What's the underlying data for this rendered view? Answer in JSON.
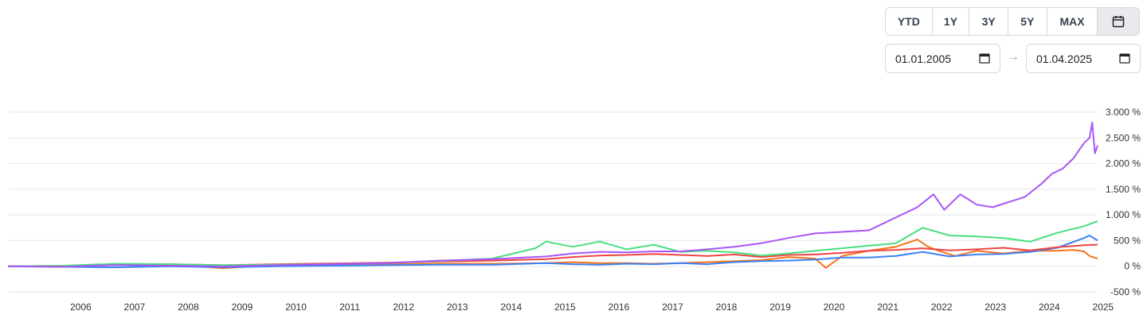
{
  "controls": {
    "range_buttons": [
      "YTD",
      "1Y",
      "3Y",
      "5Y",
      "MAX"
    ],
    "calendar_icon": "calendar-icon",
    "start_date": "01.01.2005",
    "end_date": "01.04.2025",
    "arrow": "→"
  },
  "chart_data": {
    "type": "line",
    "title": "",
    "xlabel": "",
    "ylabel": "",
    "x_range": [
      2005.0,
      2025.25
    ],
    "ylim": [
      -500,
      3000
    ],
    "y_ticks": [
      -500,
      0,
      500,
      1000,
      1500,
      2000,
      2500,
      3000
    ],
    "y_tick_labels": [
      "-500 %",
      "0 %",
      "500 %",
      "1.000 %",
      "1.500 %",
      "2.000 %",
      "2.500 %",
      "3.000 %"
    ],
    "x_ticks": [
      2006,
      2007,
      2008,
      2009,
      2010,
      2011,
      2012,
      2013,
      2014,
      2015,
      2016,
      2017,
      2018,
      2019,
      2020,
      2021,
      2022,
      2023,
      2024,
      2025
    ],
    "grid": true,
    "legend": "none",
    "series": [
      {
        "color": "#a855f7",
        "points": [
          [
            2005.0,
            0
          ],
          [
            2006.0,
            -10
          ],
          [
            2007.0,
            25
          ],
          [
            2008.0,
            10
          ],
          [
            2009.0,
            -5
          ],
          [
            2010.0,
            20
          ],
          [
            2011.0,
            40
          ],
          [
            2012.0,
            60
          ],
          [
            2013.0,
            110
          ],
          [
            2014.0,
            140
          ],
          [
            2015.0,
            190
          ],
          [
            2015.5,
            250
          ],
          [
            2016.0,
            280
          ],
          [
            2016.5,
            270
          ],
          [
            2017.0,
            290
          ],
          [
            2017.5,
            290
          ],
          [
            2018.0,
            330
          ],
          [
            2018.5,
            380
          ],
          [
            2019.0,
            450
          ],
          [
            2019.5,
            550
          ],
          [
            2020.0,
            640
          ],
          [
            2020.5,
            670
          ],
          [
            2021.0,
            700
          ],
          [
            2021.3,
            850
          ],
          [
            2021.6,
            1000
          ],
          [
            2021.9,
            1150
          ],
          [
            2022.2,
            1400
          ],
          [
            2022.4,
            1100
          ],
          [
            2022.7,
            1400
          ],
          [
            2023.0,
            1200
          ],
          [
            2023.3,
            1150
          ],
          [
            2023.6,
            1250
          ],
          [
            2023.9,
            1350
          ],
          [
            2024.2,
            1600
          ],
          [
            2024.4,
            1800
          ],
          [
            2024.6,
            1900
          ],
          [
            2024.8,
            2100
          ],
          [
            2025.0,
            2400
          ],
          [
            2025.1,
            2500
          ],
          [
            2025.15,
            2800
          ],
          [
            2025.2,
            2200
          ],
          [
            2025.25,
            2350
          ]
        ]
      },
      {
        "color": "#4ade80",
        "points": [
          [
            2005.0,
            0
          ],
          [
            2006.0,
            10
          ],
          [
            2007.0,
            50
          ],
          [
            2008.0,
            40
          ],
          [
            2009.0,
            20
          ],
          [
            2010.0,
            30
          ],
          [
            2011.0,
            40
          ],
          [
            2012.0,
            60
          ],
          [
            2013.0,
            100
          ],
          [
            2014.0,
            150
          ],
          [
            2014.8,
            350
          ],
          [
            2015.0,
            480
          ],
          [
            2015.5,
            380
          ],
          [
            2016.0,
            480
          ],
          [
            2016.5,
            330
          ],
          [
            2017.0,
            420
          ],
          [
            2017.5,
            280
          ],
          [
            2018.0,
            300
          ],
          [
            2018.5,
            270
          ],
          [
            2019.0,
            210
          ],
          [
            2019.5,
            250
          ],
          [
            2020.0,
            300
          ],
          [
            2020.5,
            350
          ],
          [
            2021.0,
            400
          ],
          [
            2021.5,
            450
          ],
          [
            2022.0,
            750
          ],
          [
            2022.5,
            600
          ],
          [
            2023.0,
            580
          ],
          [
            2023.5,
            550
          ],
          [
            2024.0,
            480
          ],
          [
            2024.5,
            650
          ],
          [
            2025.0,
            780
          ],
          [
            2025.25,
            880
          ]
        ]
      },
      {
        "color": "#ef4444",
        "points": [
          [
            2005.0,
            0
          ],
          [
            2006.0,
            10
          ],
          [
            2007.0,
            30
          ],
          [
            2008.0,
            40
          ],
          [
            2009.0,
            20
          ],
          [
            2010.0,
            40
          ],
          [
            2011.0,
            55
          ],
          [
            2012.0,
            70
          ],
          [
            2013.0,
            90
          ],
          [
            2014.0,
            110
          ],
          [
            2015.0,
            140
          ],
          [
            2015.5,
            180
          ],
          [
            2016.0,
            210
          ],
          [
            2016.5,
            220
          ],
          [
            2017.0,
            240
          ],
          [
            2017.5,
            220
          ],
          [
            2018.0,
            200
          ],
          [
            2018.5,
            230
          ],
          [
            2019.0,
            180
          ],
          [
            2019.5,
            220
          ],
          [
            2020.0,
            230
          ],
          [
            2020.5,
            260
          ],
          [
            2021.0,
            300
          ],
          [
            2021.5,
            320
          ],
          [
            2022.0,
            350
          ],
          [
            2022.5,
            310
          ],
          [
            2023.0,
            330
          ],
          [
            2023.5,
            360
          ],
          [
            2024.0,
            310
          ],
          [
            2024.5,
            370
          ],
          [
            2025.0,
            410
          ],
          [
            2025.25,
            420
          ]
        ]
      },
      {
        "color": "#3b82f6",
        "points": [
          [
            2005.0,
            0
          ],
          [
            2006.0,
            -10
          ],
          [
            2007.0,
            -20
          ],
          [
            2008.0,
            0
          ],
          [
            2009.0,
            -20
          ],
          [
            2010.0,
            0
          ],
          [
            2011.0,
            10
          ],
          [
            2012.0,
            20
          ],
          [
            2013.0,
            30
          ],
          [
            2014.0,
            30
          ],
          [
            2015.0,
            60
          ],
          [
            2015.5,
            40
          ],
          [
            2016.0,
            30
          ],
          [
            2016.5,
            50
          ],
          [
            2017.0,
            40
          ],
          [
            2017.5,
            60
          ],
          [
            2018.0,
            40
          ],
          [
            2018.5,
            80
          ],
          [
            2019.0,
            100
          ],
          [
            2019.5,
            110
          ],
          [
            2020.0,
            130
          ],
          [
            2020.5,
            170
          ],
          [
            2021.0,
            170
          ],
          [
            2021.5,
            200
          ],
          [
            2022.0,
            280
          ],
          [
            2022.5,
            190
          ],
          [
            2023.0,
            230
          ],
          [
            2023.5,
            240
          ],
          [
            2024.0,
            280
          ],
          [
            2024.5,
            360
          ],
          [
            2025.0,
            550
          ],
          [
            2025.1,
            600
          ],
          [
            2025.25,
            500
          ]
        ]
      },
      {
        "color": "#f97316",
        "points": [
          [
            2005.0,
            0
          ],
          [
            2006.0,
            0
          ],
          [
            2007.0,
            30
          ],
          [
            2008.0,
            40
          ],
          [
            2009.0,
            -40
          ],
          [
            2010.0,
            30
          ],
          [
            2011.0,
            40
          ],
          [
            2012.0,
            40
          ],
          [
            2013.0,
            50
          ],
          [
            2014.0,
            50
          ],
          [
            2015.0,
            60
          ],
          [
            2015.5,
            80
          ],
          [
            2016.0,
            60
          ],
          [
            2016.5,
            60
          ],
          [
            2017.0,
            50
          ],
          [
            2017.5,
            60
          ],
          [
            2018.0,
            80
          ],
          [
            2018.5,
            100
          ],
          [
            2019.0,
            120
          ],
          [
            2019.5,
            180
          ],
          [
            2020.0,
            150
          ],
          [
            2020.2,
            -30
          ],
          [
            2020.5,
            200
          ],
          [
            2021.0,
            300
          ],
          [
            2021.5,
            380
          ],
          [
            2021.9,
            520
          ],
          [
            2022.1,
            380
          ],
          [
            2022.3,
            300
          ],
          [
            2022.6,
            200
          ],
          [
            2023.0,
            300
          ],
          [
            2023.5,
            250
          ],
          [
            2024.0,
            300
          ],
          [
            2024.5,
            300
          ],
          [
            2024.8,
            320
          ],
          [
            2025.0,
            290
          ],
          [
            2025.1,
            200
          ],
          [
            2025.25,
            150
          ]
        ]
      }
    ]
  }
}
